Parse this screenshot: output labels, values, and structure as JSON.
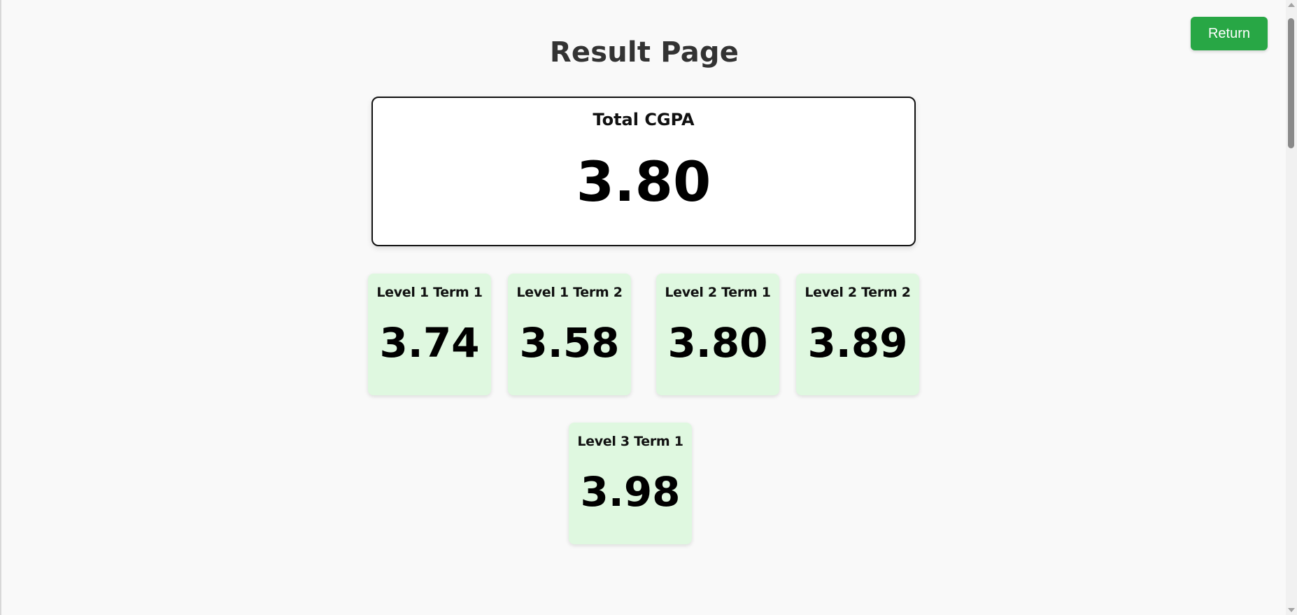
{
  "header": {
    "title": "Result Page",
    "return_label": "Return"
  },
  "total": {
    "label": "Total CGPA",
    "value": "3.80"
  },
  "terms": [
    {
      "label": "Level 1 Term 1",
      "value": "3.74"
    },
    {
      "label": "Level 1 Term 2",
      "value": "3.58"
    },
    {
      "label": "Level 2 Term 1",
      "value": "3.80"
    },
    {
      "label": "Level 2 Term 2",
      "value": "3.89"
    },
    {
      "label": "Level 3 Term 1",
      "value": "3.98"
    }
  ],
  "colors": {
    "return_button": "#28a745",
    "term_card": "#dff8e0",
    "page_background": "#f9f9f9"
  }
}
